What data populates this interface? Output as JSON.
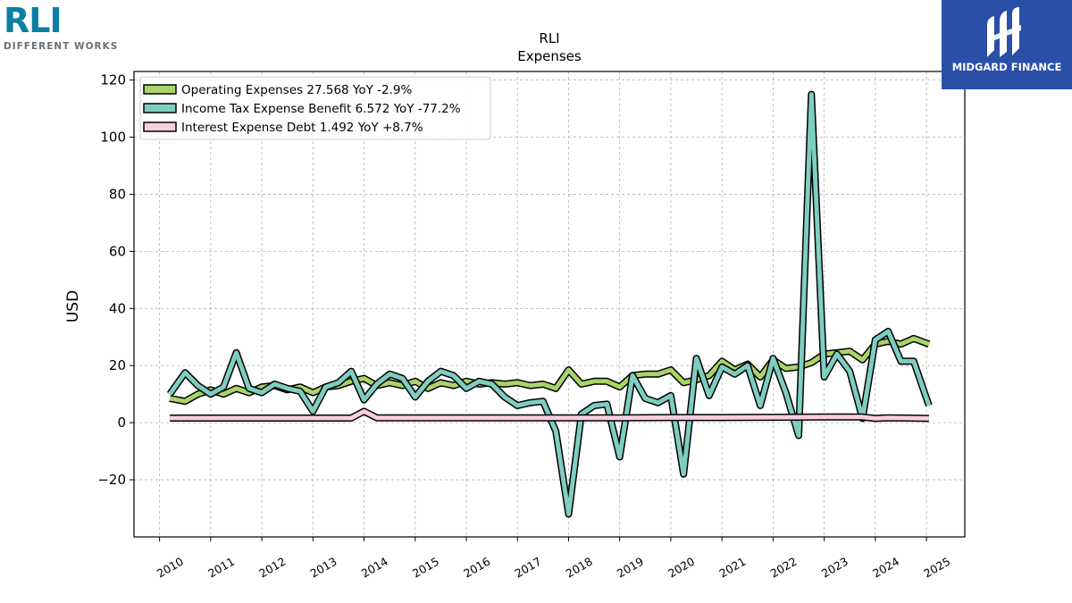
{
  "brand": {
    "left_logo_text": "RLI",
    "left_logo_tagline": "DIFFERENT WORKS",
    "right_logo_text": "MIDGARD FINANCE"
  },
  "chart_data": {
    "type": "line",
    "title": "RLI",
    "subtitle": "Expenses",
    "xlabel": "",
    "ylabel": "USD",
    "xlim": [
      2009.5,
      2025.75
    ],
    "ylim": [
      -40,
      123
    ],
    "yticks": [
      -20,
      0,
      20,
      40,
      60,
      80,
      100,
      120
    ],
    "ytick_labels": [
      "−20",
      "0",
      "20",
      "40",
      "60",
      "80",
      "100",
      "120"
    ],
    "xticks": [
      2010,
      2011,
      2012,
      2013,
      2014,
      2015,
      2016,
      2017,
      2018,
      2019,
      2020,
      2021,
      2022,
      2023,
      2024,
      2025
    ],
    "grid": true,
    "legend_position": "top-left",
    "series": [
      {
        "name": "Operating Expenses",
        "legend_label": "Operating Expenses  27.568 YoY -2.9%",
        "color": "#a8d46a",
        "values": [
          [
            2010.2,
            8.5
          ],
          [
            2010.5,
            7.5
          ],
          [
            2010.75,
            10
          ],
          [
            2011.0,
            11.5
          ],
          [
            2011.25,
            10
          ],
          [
            2011.5,
            12
          ],
          [
            2011.75,
            10.5
          ],
          [
            2012.0,
            12.5
          ],
          [
            2012.25,
            13
          ],
          [
            2012.5,
            11.5
          ],
          [
            2012.75,
            12.5
          ],
          [
            2013.0,
            10.5
          ],
          [
            2013.25,
            12.5
          ],
          [
            2013.5,
            13
          ],
          [
            2013.75,
            14.5
          ],
          [
            2014.0,
            15.5
          ],
          [
            2014.25,
            13
          ],
          [
            2014.5,
            14
          ],
          [
            2014.75,
            13
          ],
          [
            2015.0,
            14.5
          ],
          [
            2015.25,
            12
          ],
          [
            2015.5,
            14
          ],
          [
            2015.75,
            13
          ],
          [
            2016.0,
            14.5
          ],
          [
            2016.25,
            13.5
          ],
          [
            2016.5,
            14
          ],
          [
            2016.75,
            13.5
          ],
          [
            2017.0,
            14
          ],
          [
            2017.25,
            13
          ],
          [
            2017.5,
            13.5
          ],
          [
            2017.75,
            12
          ],
          [
            2018.0,
            18.5
          ],
          [
            2018.25,
            13.5
          ],
          [
            2018.5,
            14.5
          ],
          [
            2018.75,
            14.5
          ],
          [
            2019.0,
            12.5
          ],
          [
            2019.25,
            16.5
          ],
          [
            2019.5,
            17
          ],
          [
            2019.75,
            17
          ],
          [
            2020.0,
            18.5
          ],
          [
            2020.25,
            14
          ],
          [
            2020.5,
            15
          ],
          [
            2020.75,
            16.5
          ],
          [
            2021.0,
            21.5
          ],
          [
            2021.25,
            18.5
          ],
          [
            2021.5,
            20.5
          ],
          [
            2021.75,
            16
          ],
          [
            2022.0,
            22
          ],
          [
            2022.25,
            19
          ],
          [
            2022.5,
            19.5
          ],
          [
            2022.75,
            21
          ],
          [
            2023.0,
            24
          ],
          [
            2023.25,
            24.5
          ],
          [
            2023.5,
            25
          ],
          [
            2023.75,
            22
          ],
          [
            2024.0,
            27.5
          ],
          [
            2024.25,
            28.5
          ],
          [
            2024.5,
            27.5
          ],
          [
            2024.75,
            29.5
          ],
          [
            2025.05,
            27.5
          ]
        ]
      },
      {
        "name": "Income Tax Expense Benefit",
        "legend_label": "Income Tax Expense Benefit  6.572 YoY -77.2%",
        "color": "#7fcdc0",
        "values": [
          [
            2010.2,
            10
          ],
          [
            2010.5,
            17.5
          ],
          [
            2010.75,
            13
          ],
          [
            2011.0,
            10
          ],
          [
            2011.25,
            12.5
          ],
          [
            2011.5,
            24.5
          ],
          [
            2011.75,
            12
          ],
          [
            2012.0,
            10.5
          ],
          [
            2012.25,
            13.5
          ],
          [
            2012.5,
            12
          ],
          [
            2012.75,
            11
          ],
          [
            2013.0,
            4
          ],
          [
            2013.25,
            12.5
          ],
          [
            2013.5,
            14
          ],
          [
            2013.75,
            18
          ],
          [
            2014.0,
            8
          ],
          [
            2014.25,
            13.5
          ],
          [
            2014.5,
            17
          ],
          [
            2014.75,
            15.5
          ],
          [
            2015.0,
            9
          ],
          [
            2015.25,
            14.5
          ],
          [
            2015.5,
            18
          ],
          [
            2015.75,
            16.5
          ],
          [
            2016.0,
            12
          ],
          [
            2016.25,
            14.5
          ],
          [
            2016.5,
            13.5
          ],
          [
            2016.75,
            9
          ],
          [
            2017.0,
            6
          ],
          [
            2017.25,
            7
          ],
          [
            2017.5,
            7.5
          ],
          [
            2017.75,
            -3
          ],
          [
            2018.0,
            -32
          ],
          [
            2018.25,
            3
          ],
          [
            2018.5,
            6
          ],
          [
            2018.75,
            6.5
          ],
          [
            2019.0,
            -12
          ],
          [
            2019.25,
            16.5
          ],
          [
            2019.5,
            8.5
          ],
          [
            2019.75,
            7
          ],
          [
            2020.0,
            9.5
          ],
          [
            2020.25,
            -18
          ],
          [
            2020.5,
            22.5
          ],
          [
            2020.75,
            9.5
          ],
          [
            2021.0,
            19.5
          ],
          [
            2021.25,
            17
          ],
          [
            2021.5,
            20
          ],
          [
            2021.75,
            6
          ],
          [
            2022.0,
            22.5
          ],
          [
            2022.25,
            10.5
          ],
          [
            2022.5,
            -4.5
          ],
          [
            2022.75,
            115
          ],
          [
            2023.0,
            16
          ],
          [
            2023.25,
            24
          ],
          [
            2023.5,
            18
          ],
          [
            2023.75,
            1.5
          ],
          [
            2024.0,
            29
          ],
          [
            2024.25,
            32
          ],
          [
            2024.5,
            21.5
          ],
          [
            2024.75,
            21.5
          ],
          [
            2025.05,
            6
          ]
        ]
      },
      {
        "name": "Interest Expense Debt",
        "legend_label": "Interest Expense Debt  1.492 YoY +8.7%",
        "color": "#f9cde0",
        "values": [
          [
            2010.2,
            1.6
          ],
          [
            2011.0,
            1.6
          ],
          [
            2012.0,
            1.6
          ],
          [
            2013.0,
            1.6
          ],
          [
            2013.75,
            1.6
          ],
          [
            2014.0,
            4
          ],
          [
            2014.25,
            1.7
          ],
          [
            2015.0,
            1.7
          ],
          [
            2016.0,
            1.7
          ],
          [
            2017.0,
            1.7
          ],
          [
            2018.0,
            1.7
          ],
          [
            2019.0,
            1.7
          ],
          [
            2020.0,
            1.8
          ],
          [
            2021.0,
            1.8
          ],
          [
            2022.0,
            1.9
          ],
          [
            2023.0,
            2
          ],
          [
            2023.75,
            2
          ],
          [
            2024.0,
            1.5
          ],
          [
            2024.25,
            1.7
          ],
          [
            2025.05,
            1.5
          ]
        ]
      }
    ]
  }
}
